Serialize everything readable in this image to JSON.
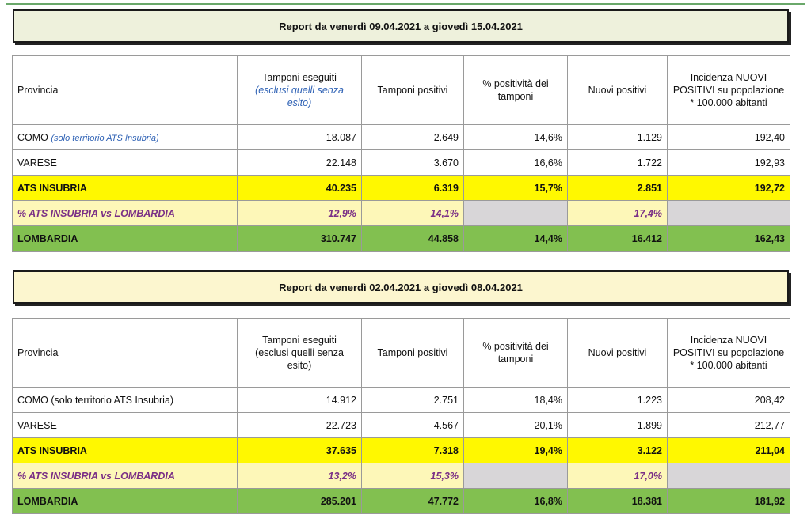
{
  "reports": [
    {
      "title": "Report da venerdì 09.04.2021 a giovedì 15.04.2021",
      "headers": {
        "provincia": "Provincia",
        "tamponi_eseguiti": "Tamponi eseguiti",
        "tamponi_eseguiti_note": "(esclusi quelli senza esito)",
        "tamponi_positivi": "Tamponi positivi",
        "positivita": "% positività dei tamponi",
        "nuovi_positivi": "Nuovi positivi",
        "incidenza": "Incidenza NUOVI POSITIVI su popolazione * 100.000 abitanti"
      },
      "rows": {
        "como": {
          "name": "COMO",
          "note": "(solo territorio ATS Insubria)",
          "tamponi_eseguiti": "18.087",
          "tamponi_positivi": "2.649",
          "positivita": "14,6%",
          "nuovi_positivi": "1.129",
          "incidenza": "192,40"
        },
        "varese": {
          "name": "VARESE",
          "tamponi_eseguiti": "22.148",
          "tamponi_positivi": "3.670",
          "positivita": "16,6%",
          "nuovi_positivi": "1.722",
          "incidenza": "192,93"
        },
        "ats": {
          "name": "ATS INSUBRIA",
          "tamponi_eseguiti": "40.235",
          "tamponi_positivi": "6.319",
          "positivita": "15,7%",
          "nuovi_positivi": "2.851",
          "incidenza": "192,72"
        },
        "pct": {
          "name": "% ATS INSUBRIA vs LOMBARDIA",
          "tamponi_eseguiti": "12,9%",
          "tamponi_positivi": "14,1%",
          "nuovi_positivi": "17,4%"
        },
        "lombardia": {
          "name": "LOMBARDIA",
          "tamponi_eseguiti": "310.747",
          "tamponi_positivi": "44.858",
          "positivita": "14,4%",
          "nuovi_positivi": "16.412",
          "incidenza": "162,43"
        }
      }
    },
    {
      "title": "Report da venerdì 02.04.2021 a giovedì 08.04.2021",
      "headers": {
        "provincia": "Provincia",
        "tamponi_eseguiti": "Tamponi eseguiti",
        "tamponi_eseguiti_note": "(esclusi quelli senza esito)",
        "tamponi_positivi": "Tamponi positivi",
        "positivita": "% positività dei tamponi",
        "nuovi_positivi": "Nuovi positivi",
        "incidenza": "Incidenza NUOVI POSITIVI su popolazione * 100.000 abitanti"
      },
      "rows": {
        "como": {
          "name": "COMO",
          "note": "(solo territorio ATS Insubria)",
          "tamponi_eseguiti": "14.912",
          "tamponi_positivi": "2.751",
          "positivita": "18,4%",
          "nuovi_positivi": "1.223",
          "incidenza": "208,42"
        },
        "varese": {
          "name": "VARESE",
          "tamponi_eseguiti": "22.723",
          "tamponi_positivi": "4.567",
          "positivita": "20,1%",
          "nuovi_positivi": "1.899",
          "incidenza": "212,77"
        },
        "ats": {
          "name": "ATS INSUBRIA",
          "tamponi_eseguiti": "37.635",
          "tamponi_positivi": "7.318",
          "positivita": "19,4%",
          "nuovi_positivi": "3.122",
          "incidenza": "211,04"
        },
        "pct": {
          "name": "% ATS INSUBRIA vs LOMBARDIA",
          "tamponi_eseguiti": "13,2%",
          "tamponi_positivi": "15,3%",
          "nuovi_positivi": "17,0%"
        },
        "lombardia": {
          "name": "LOMBARDIA",
          "tamponi_eseguiti": "285.201",
          "tamponi_positivi": "47.772",
          "positivita": "16,8%",
          "nuovi_positivi": "18.381",
          "incidenza": "181,92"
        }
      }
    }
  ]
}
